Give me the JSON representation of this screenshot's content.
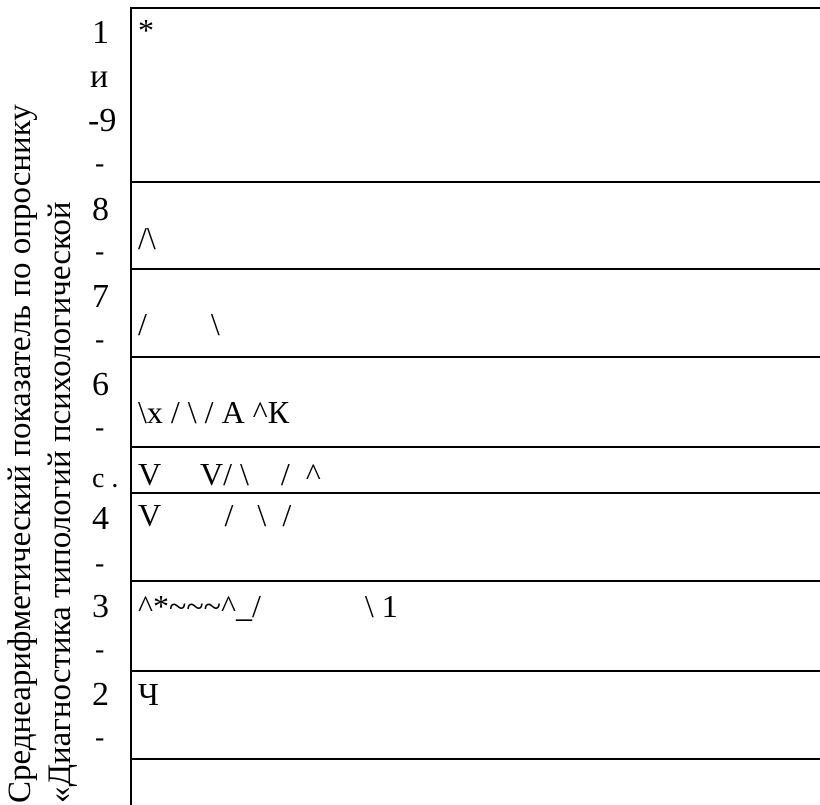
{
  "y_title": {
    "line1": "Среднеарифметический показатель по опроснику",
    "line2": "«Диагностика типологий психологической"
  },
  "ticks": {
    "t1": "1",
    "t1b": "и",
    "t9": "-9",
    "t8": "8",
    "t7": "7",
    "t6": "6",
    "t5": "с .",
    "t4": "4",
    "t3": "3",
    "t2": "2",
    "dash": "-"
  },
  "rows": {
    "r1": "*",
    "r8": "/\\",
    "r7": "/        \\",
    "r6": "\\х / \\ / А ^К",
    "r5": "V     V/ \\    /  ^",
    "r4": "V        /   \\  /",
    "r3": "^*~~~^_/             \\ 1",
    "r2": "Ч"
  }
}
